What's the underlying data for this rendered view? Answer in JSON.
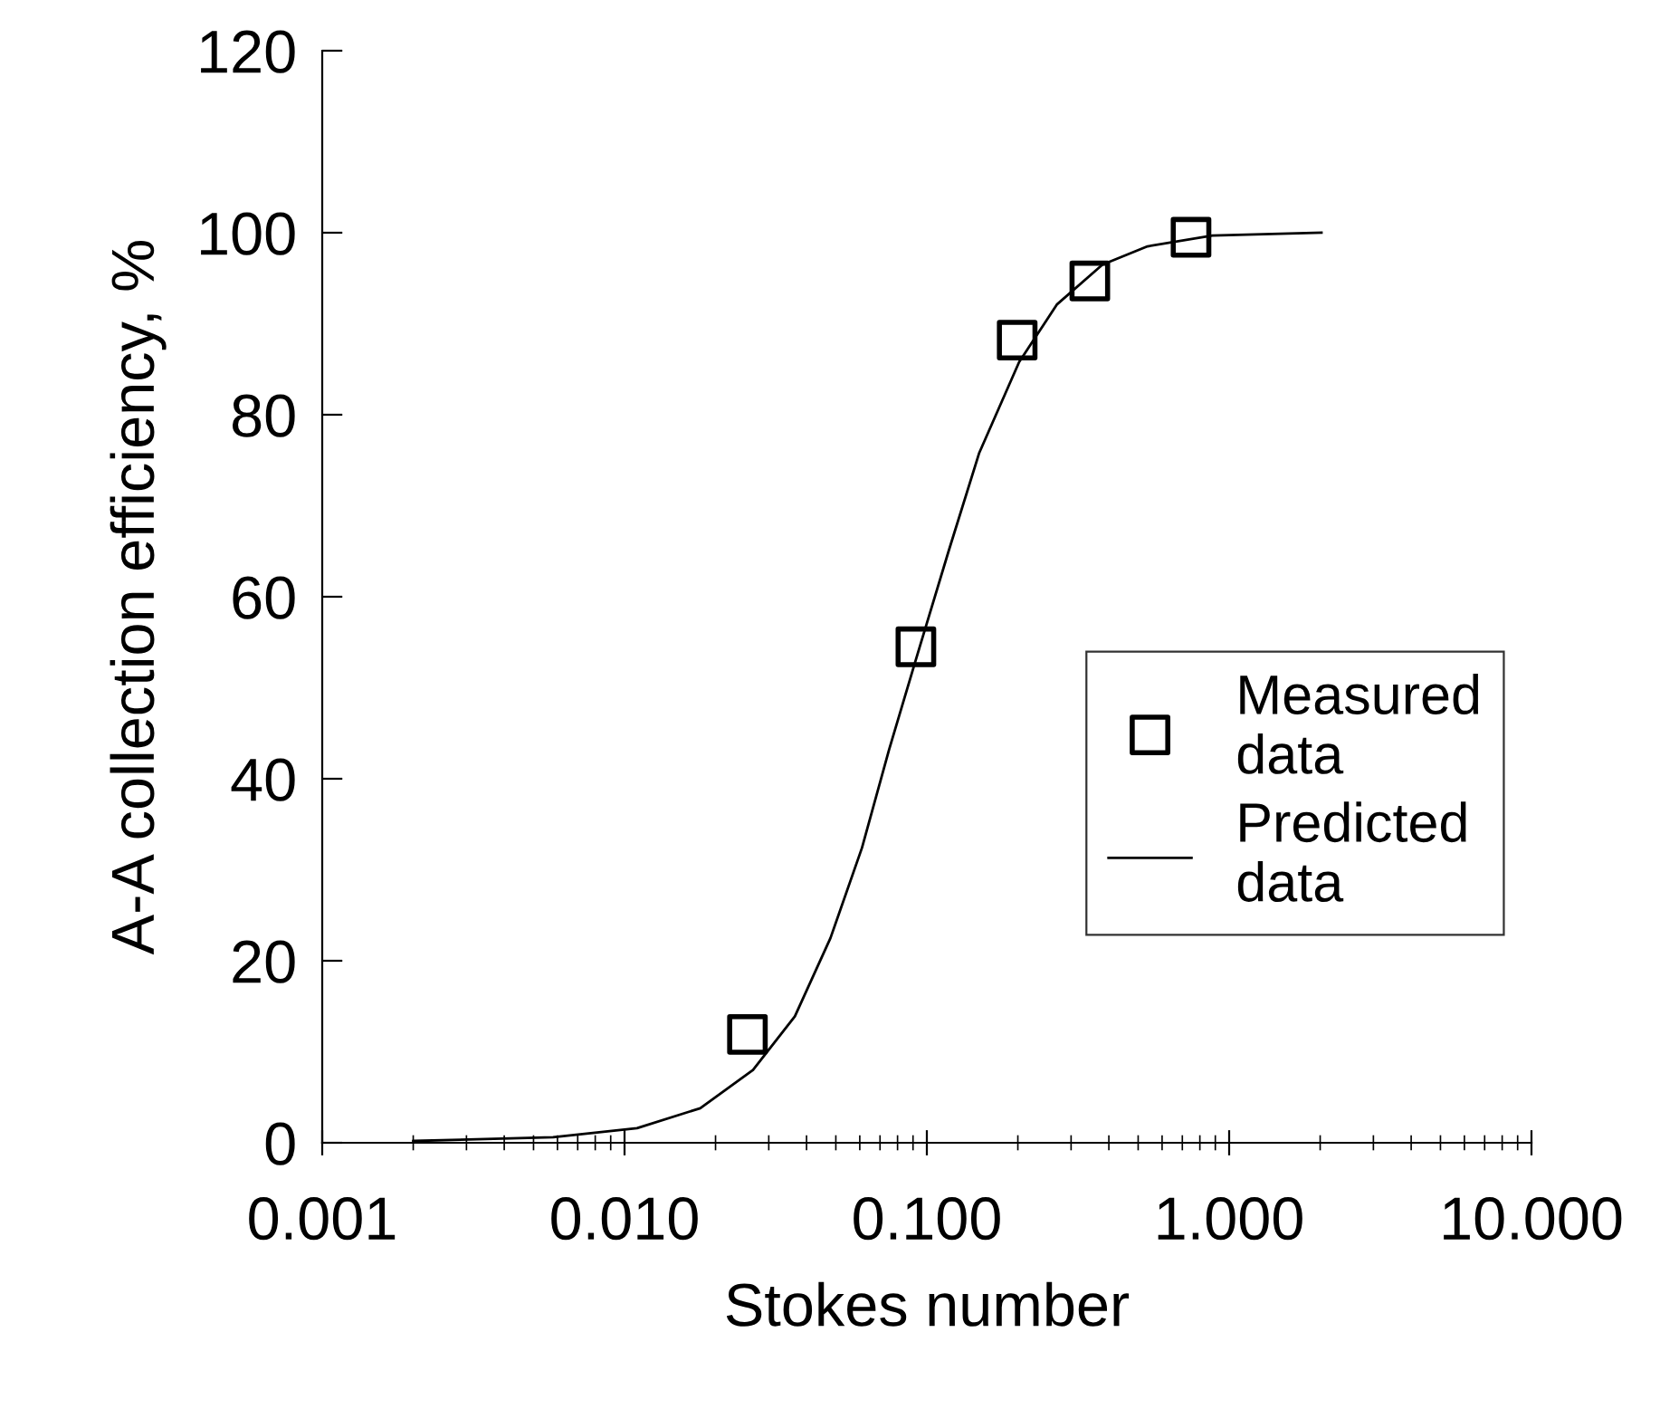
{
  "chart_data": {
    "type": "scatter",
    "xlabel": "Stokes number",
    "ylabel": "A-A collection efficiency, %",
    "log": "x",
    "xlim": [
      0.001,
      10
    ],
    "xticks": [
      {
        "value": 0.001,
        "label": "0.001"
      },
      {
        "value": 0.01,
        "label": "0.010"
      },
      {
        "value": 0.1,
        "label": "0.100"
      },
      {
        "value": 1,
        "label": "1.000"
      },
      {
        "value": 10,
        "label": "10.000"
      }
    ],
    "ylim": [
      0,
      120
    ],
    "yticks": [
      0,
      20,
      40,
      60,
      80,
      100,
      120
    ],
    "grid": false,
    "legend": "right",
    "series": [
      {
        "name": "Measured\ndata",
        "marker": "square",
        "color": "#000000",
        "x": [
          0.0255,
          0.092,
          0.199,
          0.346,
          0.748
        ],
        "values": [
          11.9,
          54.5,
          88.2,
          94.7,
          99.5
        ]
      },
      {
        "name": "Predicted\ndata",
        "type": "line",
        "marker": "none",
        "line_style": "solid",
        "color": "#000000",
        "x": [
          0.002,
          0.0058,
          0.011,
          0.0178,
          0.0266,
          0.0366,
          0.048,
          0.061,
          0.075,
          0.092,
          0.118,
          0.149,
          0.202,
          0.269,
          0.381,
          0.537,
          0.88,
          2.02
        ],
        "values": [
          0.2,
          0.6,
          1.6,
          3.8,
          8.0,
          13.9,
          22.5,
          32.4,
          43.2,
          53.1,
          65,
          75.8,
          85.8,
          92.1,
          96.5,
          98.5,
          99.7,
          100
        ]
      }
    ]
  }
}
